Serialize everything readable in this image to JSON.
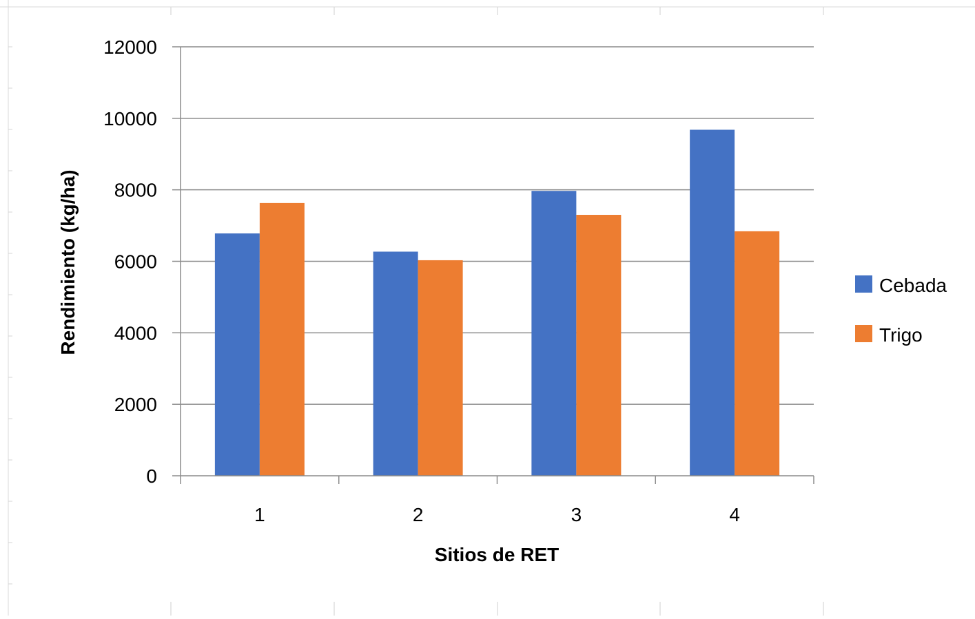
{
  "chart_data": {
    "type": "bar",
    "title": "",
    "xlabel": "Sitios de RET",
    "ylabel": "Rendimiento (kg/ha)",
    "categories": [
      "1",
      "2",
      "3",
      "4"
    ],
    "ylim": [
      0,
      12000
    ],
    "yticks": [
      "0",
      "2000",
      "4000",
      "6000",
      "8000",
      "10000",
      "12000"
    ],
    "grid": true,
    "legend_position": "right",
    "series": [
      {
        "name": "Cebada",
        "color": "#4472C4",
        "values": [
          6780,
          6270,
          7970,
          9680
        ]
      },
      {
        "name": "Trigo",
        "color": "#ED7D31",
        "values": [
          7630,
          6030,
          7300,
          6840
        ]
      }
    ]
  }
}
